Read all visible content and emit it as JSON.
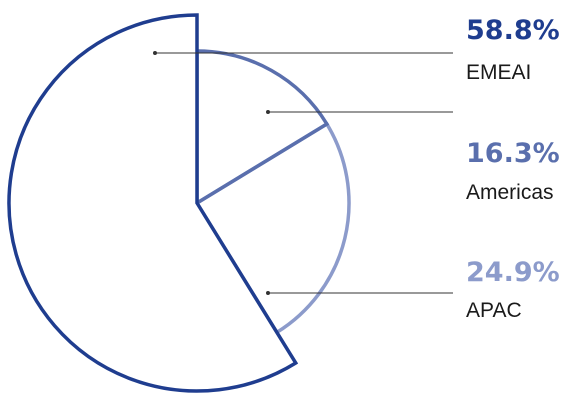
{
  "chart_data": {
    "type": "pie",
    "title": "",
    "slices": [
      {
        "label": "EMEAI",
        "value": 58.8,
        "value_label": "58.8%",
        "color": "#1f3d8f"
      },
      {
        "label": "Americas",
        "value": 16.3,
        "value_label": "16.3%",
        "color": "#5a6fad"
      },
      {
        "label": "APAC",
        "value": 24.9,
        "value_label": "24.9%",
        "color": "#8c9bcb"
      }
    ],
    "style": "outline-only slices with leader lines to labels on the right"
  }
}
